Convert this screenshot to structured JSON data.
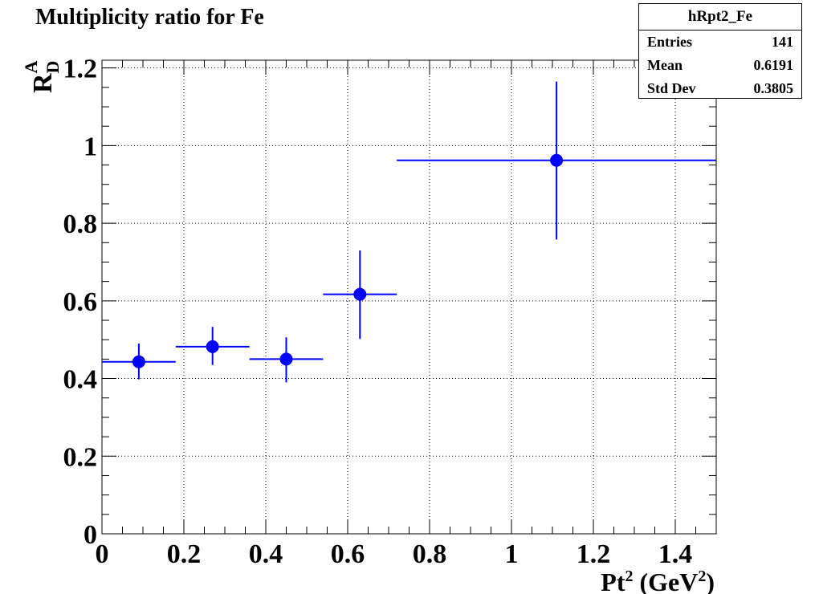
{
  "title": "Multiplicity ratio for Fe",
  "stats": {
    "name": "hRpt2_Fe",
    "rows": [
      {
        "label": "Entries",
        "value": "141"
      },
      {
        "label": "Mean",
        "value": "0.6191"
      },
      {
        "label": "Std Dev",
        "value": "0.3805"
      }
    ]
  },
  "chart_data": {
    "type": "scatter",
    "title": "Multiplicity ratio for Fe",
    "xlabel": "Pt² (GeV²)",
    "ylabel": "R_D^A",
    "xlim": [
      0,
      1.5
    ],
    "ylim": [
      0,
      1.22
    ],
    "grid": true,
    "marker_color": "#0000ff",
    "x_ticks": [
      "0",
      "0.2",
      "0.4",
      "0.6",
      "0.8",
      "1",
      "1.2",
      "1.4"
    ],
    "y_ticks": [
      "0",
      "0.2",
      "0.4",
      "0.6",
      "0.8",
      "1",
      "1.2"
    ],
    "x_tick_values": [
      0,
      0.2,
      0.4,
      0.6,
      0.8,
      1.0,
      1.2,
      1.4
    ],
    "y_tick_values": [
      0,
      0.2,
      0.4,
      0.6,
      0.8,
      1.0,
      1.2
    ],
    "points": [
      {
        "x": 0.09,
        "y": 0.443,
        "xlo": 0.0,
        "xhi": 0.18,
        "ylo": 0.398,
        "yhi": 0.49
      },
      {
        "x": 0.27,
        "y": 0.482,
        "xlo": 0.18,
        "xhi": 0.36,
        "ylo": 0.435,
        "yhi": 0.533
      },
      {
        "x": 0.45,
        "y": 0.45,
        "xlo": 0.36,
        "xhi": 0.54,
        "ylo": 0.39,
        "yhi": 0.506
      },
      {
        "x": 0.63,
        "y": 0.617,
        "xlo": 0.54,
        "xhi": 0.72,
        "ylo": 0.502,
        "yhi": 0.73
      },
      {
        "x": 1.11,
        "y": 0.962,
        "xlo": 0.72,
        "xhi": 1.5,
        "ylo": 0.758,
        "yhi": 1.165
      }
    ]
  }
}
